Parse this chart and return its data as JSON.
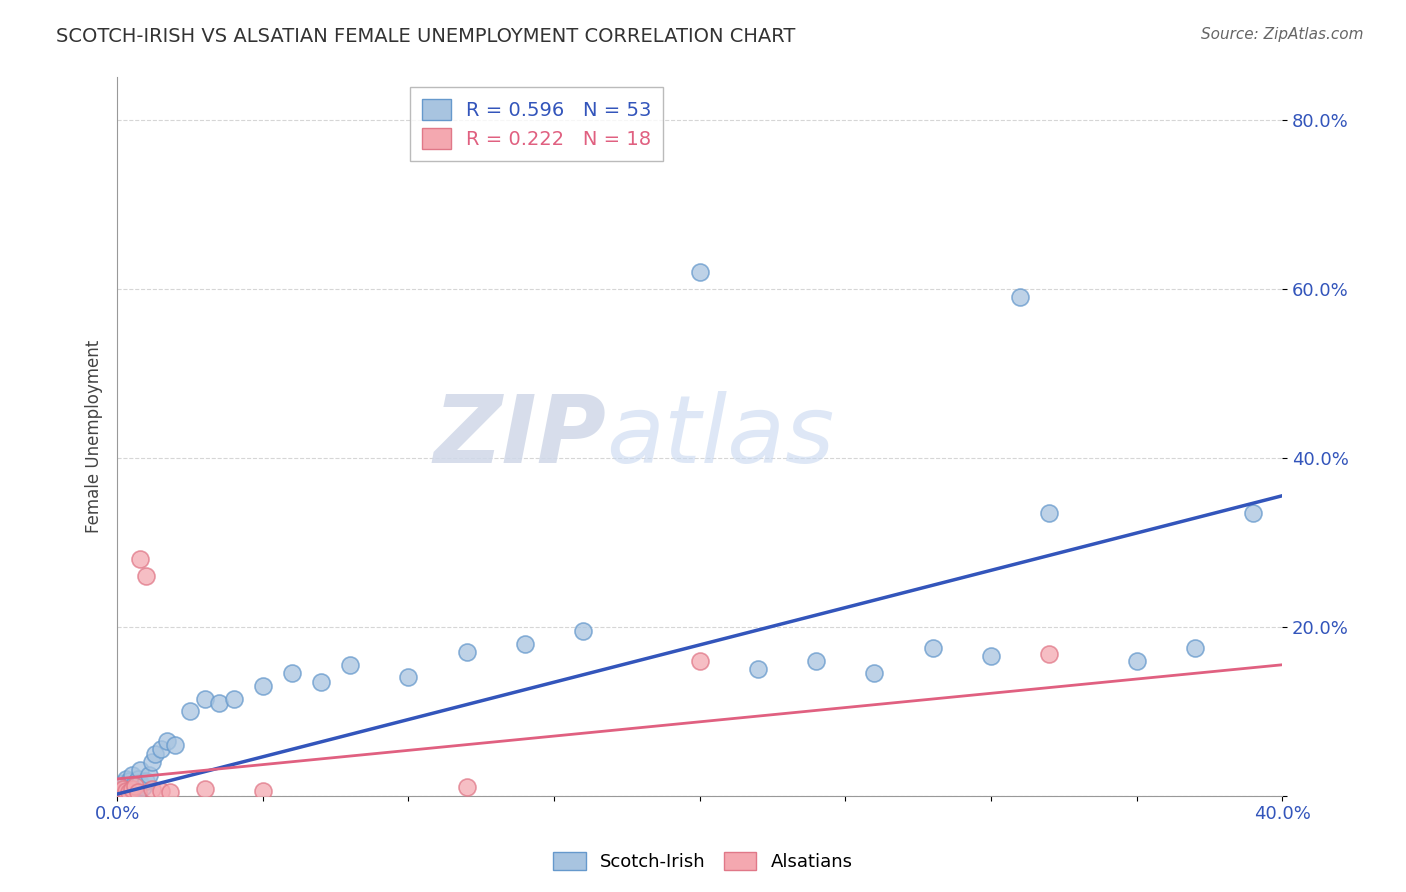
{
  "title": "SCOTCH-IRISH VS ALSATIAN FEMALE UNEMPLOYMENT CORRELATION CHART",
  "source": "Source: ZipAtlas.com",
  "ylabel": "Female Unemployment",
  "xlim": [
    0.0,
    0.4
  ],
  "ylim": [
    0.0,
    0.85
  ],
  "x_ticks": [
    0.0,
    0.05,
    0.1,
    0.15,
    0.2,
    0.25,
    0.3,
    0.35,
    0.4
  ],
  "x_tick_labels": [
    "0.0%",
    "",
    "",
    "",
    "",
    "",
    "",
    "",
    "40.0%"
  ],
  "y_ticks": [
    0.0,
    0.2,
    0.4,
    0.6,
    0.8
  ],
  "y_tick_labels": [
    "",
    "20.0%",
    "40.0%",
    "60.0%",
    "80.0%"
  ],
  "scotch_irish_color": "#a8c4e0",
  "alsatian_color": "#f4a8b0",
  "scotch_irish_edge_color": "#6699cc",
  "alsatian_edge_color": "#e07888",
  "scotch_irish_line_color": "#3355bb",
  "alsatian_line_color": "#e06080",
  "legend_R_scotch": "R = 0.596",
  "legend_N_scotch": "N = 53",
  "legend_R_alsatian": "R = 0.222",
  "legend_N_alsatian": "N = 18",
  "watermark_zip": "ZIP",
  "watermark_atlas": "atlas",
  "scotch_irish_x": [
    0.001,
    0.001,
    0.001,
    0.002,
    0.002,
    0.002,
    0.002,
    0.003,
    0.003,
    0.003,
    0.004,
    0.004,
    0.004,
    0.005,
    0.005,
    0.005,
    0.006,
    0.006,
    0.007,
    0.007,
    0.008,
    0.008,
    0.009,
    0.01,
    0.011,
    0.012,
    0.013,
    0.015,
    0.017,
    0.02,
    0.025,
    0.03,
    0.035,
    0.04,
    0.05,
    0.06,
    0.07,
    0.08,
    0.1,
    0.12,
    0.14,
    0.16,
    0.2,
    0.22,
    0.24,
    0.26,
    0.28,
    0.3,
    0.31,
    0.32,
    0.35,
    0.37,
    0.39
  ],
  "scotch_irish_y": [
    0.005,
    0.008,
    0.012,
    0.003,
    0.006,
    0.01,
    0.015,
    0.005,
    0.008,
    0.02,
    0.004,
    0.01,
    0.018,
    0.007,
    0.012,
    0.025,
    0.008,
    0.015,
    0.01,
    0.02,
    0.015,
    0.03,
    0.01,
    0.018,
    0.025,
    0.04,
    0.05,
    0.055,
    0.065,
    0.06,
    0.1,
    0.115,
    0.11,
    0.115,
    0.13,
    0.145,
    0.135,
    0.155,
    0.14,
    0.17,
    0.18,
    0.195,
    0.62,
    0.15,
    0.16,
    0.145,
    0.175,
    0.165,
    0.59,
    0.335,
    0.16,
    0.175,
    0.335
  ],
  "alsatian_x": [
    0.001,
    0.001,
    0.002,
    0.003,
    0.004,
    0.005,
    0.006,
    0.007,
    0.008,
    0.01,
    0.012,
    0.015,
    0.018,
    0.03,
    0.05,
    0.12,
    0.2,
    0.32
  ],
  "alsatian_y": [
    0.005,
    0.01,
    0.008,
    0.006,
    0.004,
    0.008,
    0.012,
    0.005,
    0.28,
    0.26,
    0.008,
    0.006,
    0.005,
    0.008,
    0.006,
    0.01,
    0.16,
    0.168
  ],
  "scotch_trend_x": [
    0.0,
    0.4
  ],
  "scotch_trend_y": [
    0.002,
    0.355
  ],
  "alsatian_trend_x": [
    0.0,
    0.4
  ],
  "alsatian_trend_y": [
    0.02,
    0.155
  ]
}
